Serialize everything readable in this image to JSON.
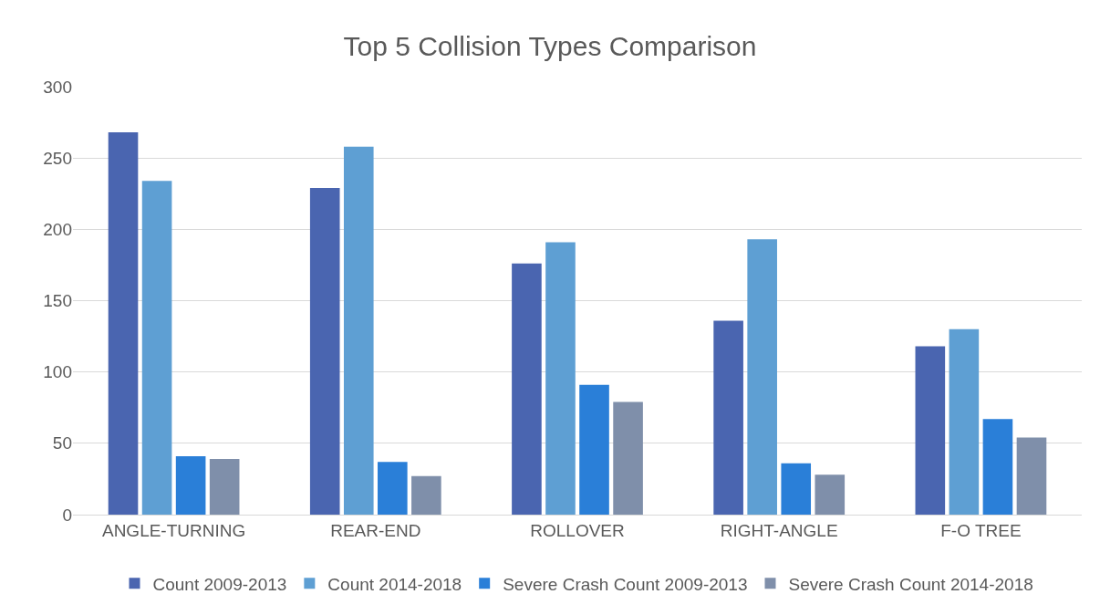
{
  "chart_data": {
    "type": "bar",
    "title": "Top 5 Collision Types Comparison",
    "categories": [
      "ANGLE-TURNING",
      "REAR-END",
      "ROLLOVER",
      "RIGHT-ANGLE",
      "F-O TREE"
    ],
    "series": [
      {
        "name": "Count 2009-2013",
        "color": "#4a65b0",
        "values": [
          268,
          229,
          176,
          136,
          118
        ]
      },
      {
        "name": "Count 2014-2018",
        "color": "#5e9fd3",
        "values": [
          234,
          258,
          191,
          193,
          130
        ]
      },
      {
        "name": "Severe Crash Count 2009-2013",
        "color": "#2a7fd8",
        "values": [
          41,
          37,
          91,
          36,
          67
        ]
      },
      {
        "name": "Severe Crash Count 2014-2018",
        "color": "#7f8faa",
        "values": [
          39,
          27,
          79,
          28,
          54
        ]
      }
    ],
    "ylim": [
      0,
      300
    ],
    "yticks": [
      0,
      50,
      100,
      150,
      200,
      250,
      300
    ],
    "grid": "y",
    "legend": "bottom"
  }
}
